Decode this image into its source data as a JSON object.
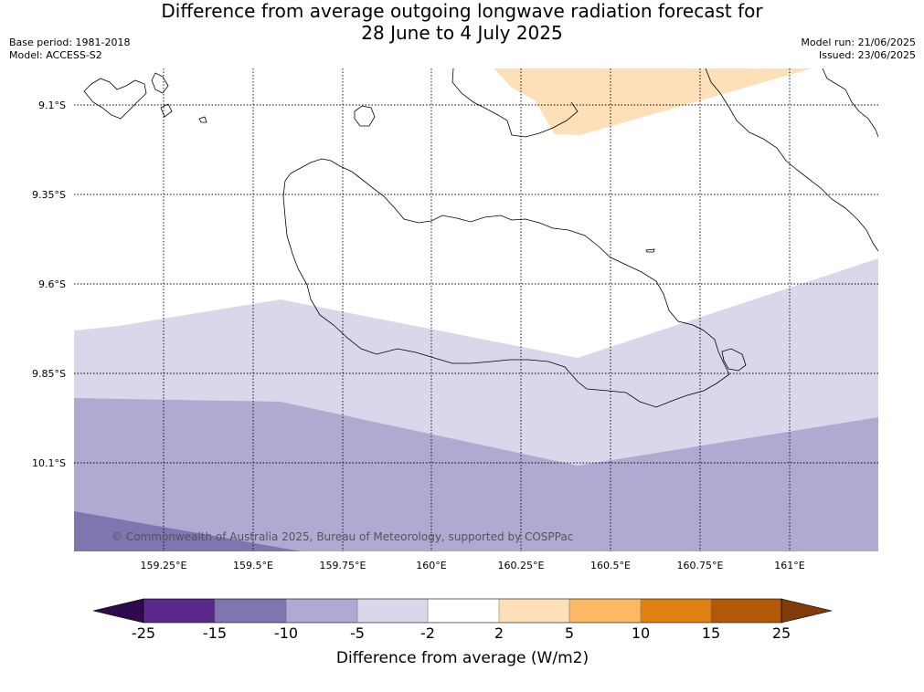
{
  "title": {
    "line1": "Difference from average outgoing longwave radiation forecast for",
    "line2": "28 June to 4 July 2025"
  },
  "meta": {
    "base_period": "Base period: 1981-2018",
    "model": "Model: ACCESS-S2",
    "model_run": "Model run: 21/06/2025",
    "issued": "Issued: 23/06/2025"
  },
  "map": {
    "latitude_labels": [
      "9.1°S",
      "9.35°S",
      "9.6°S",
      "9.85°S",
      "10.1°S"
    ],
    "longitude_labels": [
      "159.25°E",
      "159.5°E",
      "159.75°E",
      "160°E",
      "160.25°E",
      "160.5°E",
      "160.75°E",
      "161°E"
    ],
    "copyright": "© Commonwealth of Australia 2025, Bureau of Meteorology, supported by COSPPac",
    "shading_colors": {
      "-15 to -10": "#8175b0",
      "-10 to -5": "#b0aad2",
      "-5 to -2": "#d8d8ea",
      "2 to 5": "#fde0b7"
    }
  },
  "colorbar": {
    "ticks": [
      "-25",
      "-15",
      "-10",
      "-5",
      "-2",
      "2",
      "5",
      "10",
      "15",
      "25"
    ],
    "colors": [
      "#2f0a4d",
      "#5a2a8a",
      "#8175b0",
      "#b0aad2",
      "#d8d8ea",
      "#ffffff",
      "#fde0b7",
      "#fdb863",
      "#e08213",
      "#b35806",
      "#7f3b08"
    ],
    "title": "Difference from average (W/m2)"
  }
}
